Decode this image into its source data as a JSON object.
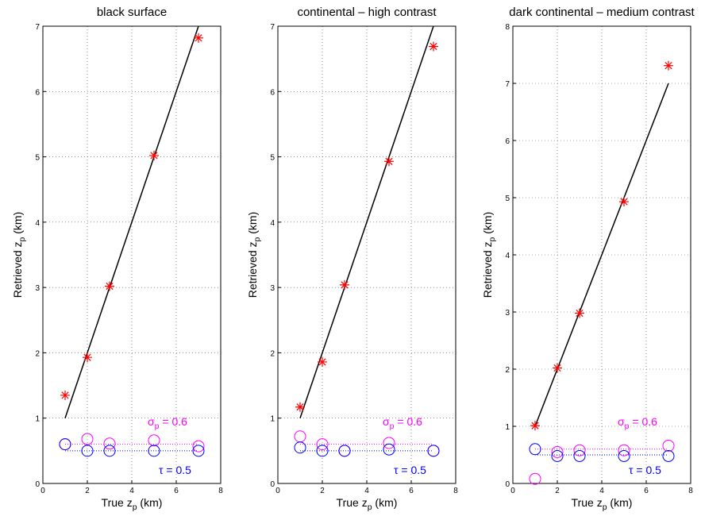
{
  "chart_data": [
    {
      "type": "scatter",
      "title": "black surface",
      "xlabel": [
        "True z",
        "p",
        " (km)"
      ],
      "ylabel": [
        "Retrieved z",
        "p",
        " (km)"
      ],
      "xlim": [
        0,
        8
      ],
      "xticks": [
        0,
        2,
        4,
        6,
        8
      ],
      "ylim": [
        0,
        7
      ],
      "yticks": [
        0,
        1,
        2,
        3,
        4,
        5,
        6,
        7
      ],
      "grid": true,
      "annotations": [
        {
          "parts": [
            "σ",
            "p",
            " = 0.6"
          ],
          "color": "#ff00ff"
        },
        {
          "parts": [
            "τ = 0.5"
          ],
          "color": "#0000ff"
        }
      ],
      "series": [
        {
          "style": "line",
          "color": "#000000",
          "x": [
            1,
            7
          ],
          "values": [
            1,
            7
          ]
        },
        {
          "style": "dotted",
          "color": "#ff00ff",
          "x": [
            1,
            7
          ],
          "values": [
            0.6,
            0.6
          ]
        },
        {
          "style": "dotted",
          "color": "#0000ff",
          "x": [
            1,
            7
          ],
          "values": [
            0.5,
            0.5
          ]
        },
        {
          "style": "star",
          "color": "#ff0000",
          "x": [
            1,
            2,
            3,
            5,
            7
          ],
          "values": [
            1.35,
            1.93,
            3.02,
            5.02,
            6.82
          ]
        },
        {
          "style": "circle",
          "color": "#ff00ff",
          "x": [
            1,
            2,
            3,
            5,
            7
          ],
          "values": [
            0.6,
            0.68,
            0.61,
            0.66,
            0.57
          ]
        },
        {
          "style": "circle",
          "color": "#0000ff",
          "x": [
            1,
            2,
            3,
            5,
            7
          ],
          "values": [
            0.6,
            0.5,
            0.5,
            0.5,
            0.5
          ]
        }
      ]
    },
    {
      "type": "scatter",
      "title": "continental – high contrast",
      "xlabel": [
        "True z",
        "p",
        " (km)"
      ],
      "ylabel": [
        "Retrieved z",
        "p",
        " (km)"
      ],
      "xlim": [
        0,
        8
      ],
      "xticks": [
        0,
        2,
        4,
        6,
        8
      ],
      "ylim": [
        0,
        7
      ],
      "yticks": [
        0,
        1,
        2,
        3,
        4,
        5,
        6,
        7
      ],
      "grid": true,
      "annotations": [
        {
          "parts": [
            "σ",
            "p",
            " = 0.6"
          ],
          "color": "#ff00ff"
        },
        {
          "parts": [
            "τ = 0.5"
          ],
          "color": "#0000ff"
        }
      ],
      "series": [
        {
          "style": "line",
          "color": "#000000",
          "x": [
            1,
            7
          ],
          "values": [
            1,
            7
          ]
        },
        {
          "style": "dotted",
          "color": "#ff00ff",
          "x": [
            1,
            7
          ],
          "values": [
            0.6,
            0.6
          ]
        },
        {
          "style": "dotted",
          "color": "#0000ff",
          "x": [
            1,
            7
          ],
          "values": [
            0.5,
            0.5
          ]
        },
        {
          "style": "star",
          "color": "#ff0000",
          "x": [
            1,
            2,
            3,
            5,
            7
          ],
          "values": [
            1.17,
            1.86,
            3.04,
            4.93,
            6.69
          ]
        },
        {
          "style": "circle",
          "color": "#ff00ff",
          "x": [
            1,
            2,
            3,
            5,
            7
          ],
          "values": [
            0.72,
            0.6,
            0.5,
            0.62,
            0.5
          ]
        },
        {
          "style": "circle",
          "color": "#0000ff",
          "x": [
            1,
            2,
            3,
            5,
            7
          ],
          "values": [
            0.55,
            0.5,
            0.5,
            0.52,
            0.5
          ]
        }
      ]
    },
    {
      "type": "scatter",
      "title": "dark continental – medium contrast",
      "xlabel": [
        "True z",
        "p",
        " (km)"
      ],
      "ylabel": [
        "Retrieved z",
        "p",
        " (km)"
      ],
      "xlim": [
        0,
        8
      ],
      "xticks": [
        0,
        2,
        4,
        6,
        8
      ],
      "ylim": [
        0,
        8
      ],
      "yticks": [
        0,
        1,
        2,
        3,
        4,
        5,
        6,
        7,
        8
      ],
      "grid": true,
      "annotations": [
        {
          "parts": [
            "σ",
            "p",
            " = 0.6"
          ],
          "color": "#ff00ff"
        },
        {
          "parts": [
            "τ = 0.5"
          ],
          "color": "#0000ff"
        }
      ],
      "series": [
        {
          "style": "line",
          "color": "#000000",
          "x": [
            1,
            7
          ],
          "values": [
            1,
            7
          ]
        },
        {
          "style": "dotted",
          "color": "#ff00ff",
          "x": [
            1,
            7
          ],
          "values": [
            0.6,
            0.6
          ]
        },
        {
          "style": "dotted",
          "color": "#0000ff",
          "x": [
            1,
            7
          ],
          "values": [
            0.5,
            0.5
          ]
        },
        {
          "style": "star",
          "color": "#ff0000",
          "x": [
            1,
            2,
            3,
            5,
            7
          ],
          "values": [
            1.01,
            2.02,
            2.98,
            4.93,
            7.31
          ]
        },
        {
          "style": "circle",
          "color": "#ff00ff",
          "x": [
            1,
            2,
            3,
            5,
            7
          ],
          "values": [
            0.08,
            0.55,
            0.58,
            0.58,
            0.66
          ]
        },
        {
          "style": "circle",
          "color": "#0000ff",
          "x": [
            1,
            2,
            3,
            5,
            7
          ],
          "values": [
            0.6,
            0.48,
            0.48,
            0.48,
            0.48
          ]
        }
      ]
    }
  ]
}
